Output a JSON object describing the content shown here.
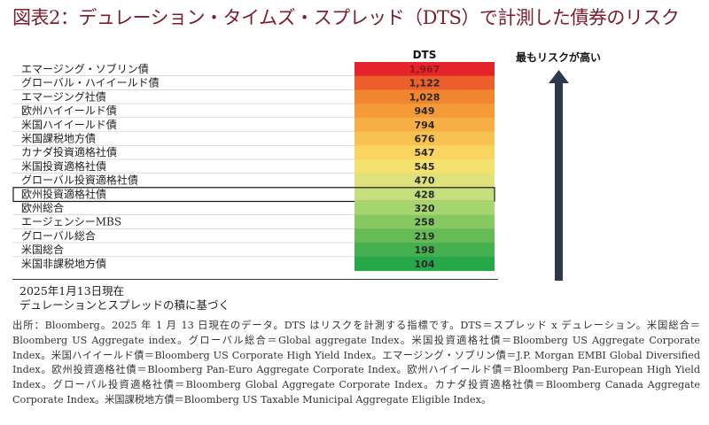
{
  "title": "図表2：デュレーション・タイムズ・スプレッド（DTS）で計測した債券のリスク",
  "header": {
    "column": "DTS",
    "risk_label": "最もリスクが高い"
  },
  "chart_data": {
    "type": "bar",
    "title": "図表2：デュレーション・タイムズ・スプレッド（DTS）で計測した債券のリスク",
    "value_label": "DTS",
    "categories": [
      "エマージング・ソブリン債",
      "グローバル・ハイイールド債",
      "エマージング社債",
      "欧州ハイイールド債",
      "米国ハイイールド債",
      "米国課税地方債",
      "カナダ投資適格社債",
      "米国投資適格社債",
      "グローバル投資適格社債",
      "欧州投資適格社債",
      "欧州総合",
      "エージェンシーMBS",
      "グローバル総合",
      "米国総合",
      "米国非課税地方債"
    ],
    "values": [
      1967,
      1122,
      1028,
      949,
      794,
      676,
      547,
      545,
      470,
      428,
      320,
      258,
      219,
      198,
      104
    ],
    "value_labels": [
      "1,967",
      "1,122",
      "1,028",
      "949",
      "794",
      "676",
      "547",
      "545",
      "470",
      "428",
      "320",
      "258",
      "219",
      "198",
      "104"
    ],
    "colors": [
      "#e5232a",
      "#ec5f2c",
      "#f08530",
      "#f49a37",
      "#f6ae45",
      "#f8c252",
      "#f9d461",
      "#f5e16e",
      "#dfe27a",
      "#c5df7c",
      "#a6d46f",
      "#86c862",
      "#66bb57",
      "#45b050",
      "#27a64a"
    ],
    "highlighted_category": "欧州投資適格社債"
  },
  "notes": {
    "date": "2025年1月13日現在",
    "basis": "デュレーションとスプレッドの積に基づく"
  },
  "source": "出所：Bloomberg。2025 年 1 月 13 日現在のデータ。DTS はリスクを計測する指標です。DTS＝スプレッド x デュレーション。米国総合＝Bloomberg US Aggregate index。グローバル総合＝Global aggregate Index。米国投資適格社債＝Bloomberg US Aggregate Corporate Index。米国ハイイールド債＝Bloomberg US Corporate High Yield Index。エマージング・ソブリン債＝J.P. Morgan EMBI Global Diversified Index。欧州投資適格社債＝Bloomberg Pan-Euro Aggregate Corporate Index。欧州ハイイールド債＝Bloomberg Pan-European High Yield Index。グローバル投資適格社債＝Bloomberg Global Aggregate Corporate Index。カナダ投資適格社債＝Bloomberg Canada Aggregate Corporate Index。米国課税地方債＝Bloomberg US Taxable Municipal Aggregate Eligible Index。"
}
